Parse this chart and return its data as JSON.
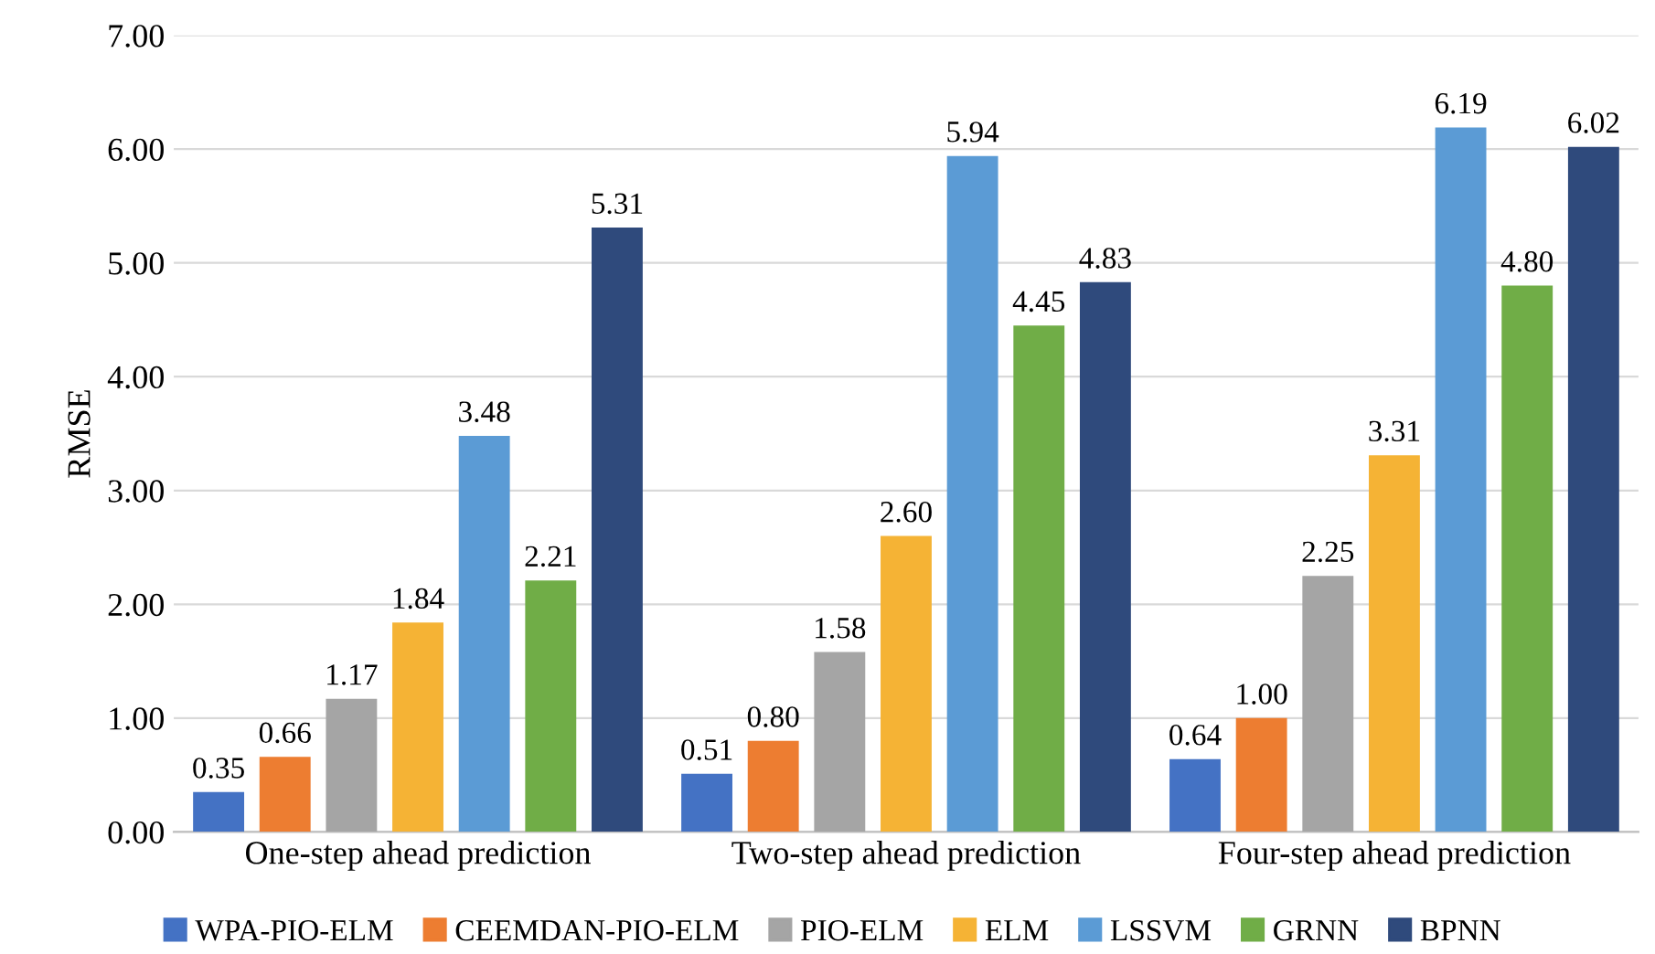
{
  "chart_data": {
    "type": "bar",
    "ylabel": "RMSE",
    "categories": [
      "One-step ahead prediction",
      "Two-step ahead prediction",
      "Four-step ahead prediction"
    ],
    "series": [
      {
        "name": "WPA-PIO-ELM",
        "color": "#4472c4",
        "values": [
          0.35,
          0.51,
          0.64
        ],
        "value_labels": [
          "0.35",
          "0.51",
          "0.64"
        ]
      },
      {
        "name": "CEEMDAN-PIO-ELM",
        "color": "#ed7d31",
        "values": [
          0.66,
          0.8,
          1.0
        ],
        "value_labels": [
          "0.66",
          "0.80",
          "1.00"
        ]
      },
      {
        "name": "PIO-ELM",
        "color": "#a5a5a5",
        "values": [
          1.17,
          1.58,
          2.25
        ],
        "value_labels": [
          "1.17",
          "1.58",
          "2.25"
        ]
      },
      {
        "name": "ELM",
        "color": "#f5b335",
        "values": [
          1.84,
          2.6,
          3.31
        ],
        "value_labels": [
          "1.84",
          "2.60",
          "3.31"
        ]
      },
      {
        "name": "LSSVM",
        "color": "#5b9bd5",
        "values": [
          3.48,
          5.94,
          6.19
        ],
        "value_labels": [
          "3.48",
          "5.94",
          "6.19"
        ]
      },
      {
        "name": "GRNN",
        "color": "#70ad47",
        "values": [
          2.21,
          4.45,
          4.8
        ],
        "value_labels": [
          "2.21",
          "4.45",
          "4.80"
        ]
      },
      {
        "name": "BPNN",
        "color": "#2f4a7c",
        "values": [
          5.31,
          4.83,
          6.02
        ],
        "value_labels": [
          "5.31",
          "4.83",
          "6.02"
        ]
      }
    ],
    "ylim": [
      0,
      7
    ],
    "yticks": [
      {
        "value": 0,
        "label": "0.00"
      },
      {
        "value": 1,
        "label": "1.00"
      },
      {
        "value": 2,
        "label": "2.00"
      },
      {
        "value": 3,
        "label": "3.00"
      },
      {
        "value": 4,
        "label": "4.00"
      },
      {
        "value": 5,
        "label": "5.00"
      },
      {
        "value": 6,
        "label": "6.00"
      },
      {
        "value": 7,
        "label": "7.00"
      }
    ],
    "grid": "y",
    "legend": "bottom"
  }
}
